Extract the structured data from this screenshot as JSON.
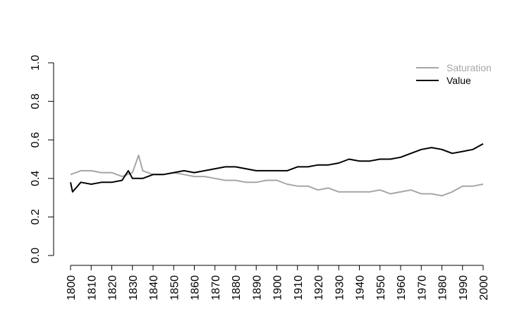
{
  "chart_data": {
    "type": "line",
    "title": "",
    "xlabel": "",
    "ylabel": "",
    "xlim": [
      1800,
      2000
    ],
    "ylim": [
      0,
      1
    ],
    "x_ticks": [
      "1800",
      "1810",
      "1820",
      "1830",
      "1840",
      "1850",
      "1860",
      "1870",
      "1880",
      "1890",
      "1900",
      "1910",
      "1920",
      "1930",
      "1940",
      "1950",
      "1960",
      "1970",
      "1980",
      "1990",
      "2000"
    ],
    "y_ticks": [
      "0.0",
      "0.2",
      "0.4",
      "0.6",
      "0.8",
      "1.0"
    ],
    "grid": false,
    "legend_position": "top-right",
    "series": [
      {
        "name": "Saturation",
        "color": "#a6a6a6",
        "x": [
          1800,
          1805,
          1810,
          1815,
          1820,
          1825,
          1830,
          1833,
          1835,
          1840,
          1845,
          1850,
          1855,
          1860,
          1865,
          1870,
          1875,
          1880,
          1885,
          1890,
          1895,
          1900,
          1905,
          1910,
          1915,
          1920,
          1925,
          1930,
          1935,
          1940,
          1945,
          1950,
          1955,
          1960,
          1965,
          1970,
          1975,
          1980,
          1985,
          1990,
          1995,
          2000
        ],
        "y": [
          0.42,
          0.44,
          0.44,
          0.43,
          0.43,
          0.41,
          0.43,
          0.52,
          0.44,
          0.42,
          0.42,
          0.43,
          0.42,
          0.41,
          0.41,
          0.4,
          0.39,
          0.39,
          0.38,
          0.38,
          0.39,
          0.39,
          0.37,
          0.36,
          0.36,
          0.34,
          0.35,
          0.33,
          0.33,
          0.33,
          0.33,
          0.34,
          0.32,
          0.33,
          0.34,
          0.32,
          0.32,
          0.31,
          0.33,
          0.36,
          0.36,
          0.37
        ]
      },
      {
        "name": "Value",
        "color": "#000000",
        "x": [
          1800,
          1801,
          1805,
          1810,
          1815,
          1820,
          1825,
          1828,
          1830,
          1835,
          1840,
          1845,
          1850,
          1855,
          1860,
          1865,
          1870,
          1875,
          1880,
          1885,
          1890,
          1895,
          1900,
          1905,
          1910,
          1915,
          1920,
          1925,
          1930,
          1935,
          1940,
          1945,
          1950,
          1955,
          1960,
          1965,
          1970,
          1975,
          1980,
          1985,
          1990,
          1995,
          2000
        ],
        "y": [
          0.38,
          0.33,
          0.38,
          0.37,
          0.38,
          0.38,
          0.39,
          0.44,
          0.4,
          0.4,
          0.42,
          0.42,
          0.43,
          0.44,
          0.43,
          0.44,
          0.45,
          0.46,
          0.46,
          0.45,
          0.44,
          0.44,
          0.44,
          0.44,
          0.46,
          0.46,
          0.47,
          0.47,
          0.48,
          0.5,
          0.49,
          0.49,
          0.5,
          0.5,
          0.51,
          0.53,
          0.55,
          0.56,
          0.55,
          0.53,
          0.54,
          0.55,
          0.58
        ]
      }
    ]
  }
}
